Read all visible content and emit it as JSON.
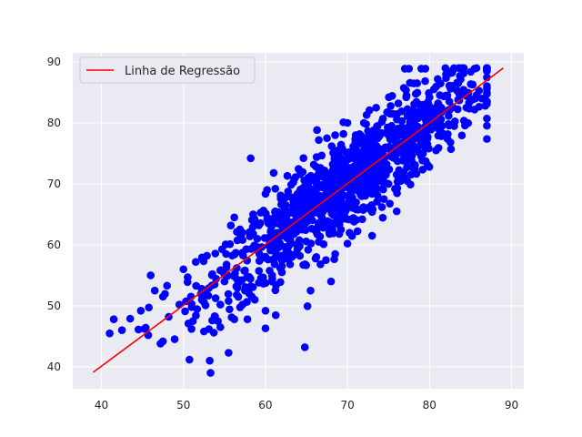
{
  "chart_data": {
    "type": "scatter",
    "xlim": [
      36.5,
      91.5
    ],
    "ylim": [
      36.4,
      91.5
    ],
    "xticks": [
      40,
      50,
      60,
      70,
      80,
      90
    ],
    "yticks": [
      40,
      50,
      60,
      70,
      80,
      90
    ],
    "grid": true,
    "legend": {
      "placement": "top-left",
      "entries": [
        "Linha de Regressão"
      ]
    },
    "colors": {
      "background": "#eaeaf2",
      "grid": "#ffffff",
      "points": "#0000ff",
      "line": "#ff0000"
    },
    "regression_line": {
      "x": [
        39,
        89
      ],
      "y": [
        39.1,
        89.0
      ]
    },
    "point_cloud": {
      "count": 1000,
      "x_mean": 70,
      "x_std": 8.5,
      "slope": 1.0,
      "intercept": 0.1,
      "residual_std": 3.8,
      "clip": [
        39,
        89
      ]
    },
    "points": [
      [
        41.5,
        47.8
      ],
      [
        42.5,
        46.0
      ],
      [
        43.5,
        47.9
      ],
      [
        44.8,
        49.2
      ],
      [
        45.7,
        45.2
      ],
      [
        46,
        55
      ],
      [
        46.5,
        52.5
      ],
      [
        47.2,
        43.8
      ],
      [
        47.5,
        51.5
      ],
      [
        48,
        53.3
      ],
      [
        48.2,
        48.2
      ],
      [
        49.5,
        50.2
      ],
      [
        50,
        56
      ],
      [
        50.2,
        49.1
      ],
      [
        50.5,
        53.9
      ],
      [
        50.6,
        47.1
      ],
      [
        51,
        49.8
      ],
      [
        51.5,
        57.2
      ],
      [
        52.2,
        52.8
      ],
      [
        52.5,
        45.8
      ],
      [
        53.2,
        41
      ],
      [
        53.3,
        39
      ],
      [
        53.5,
        47.6
      ],
      [
        53.7,
        45.6
      ],
      [
        54.2,
        47.5
      ],
      [
        54.5,
        46.5
      ],
      [
        55.5,
        42.3
      ],
      [
        56.2,
        47.8
      ],
      [
        57.2,
        50.2
      ],
      [
        57.8,
        47.8
      ],
      [
        58.2,
        74.2
      ],
      [
        58.5,
        65
      ],
      [
        59,
        61
      ],
      [
        60,
        49.2
      ],
      [
        60,
        46.3
      ],
      [
        60.2,
        69
      ],
      [
        60.8,
        54
      ],
      [
        61,
        71.8
      ],
      [
        61.2,
        69.2
      ],
      [
        62,
        55.5
      ],
      [
        64.8,
        43.2
      ],
      [
        65,
        70
      ],
      [
        65.5,
        52.5
      ],
      [
        66.2,
        58
      ],
      [
        68,
        54
      ],
      [
        68.5,
        58.5
      ],
      [
        69,
        61.8
      ],
      [
        70,
        60.2
      ],
      [
        72.2,
        69.8
      ],
      [
        73,
        61.5
      ],
      [
        74,
        75
      ],
      [
        75,
        70
      ],
      [
        76,
        65.5
      ],
      [
        77,
        88.9
      ],
      [
        77.5,
        88.9
      ],
      [
        79,
        88.9
      ],
      [
        79.5,
        88.9
      ],
      [
        80,
        84.2
      ],
      [
        81,
        87.2
      ],
      [
        82,
        84.5
      ],
      [
        83.5,
        86.5
      ],
      [
        85.5,
        82.2
      ],
      [
        85.5,
        88.9
      ],
      [
        86.8,
        82.8
      ],
      [
        70,
        80
      ],
      [
        71,
        78
      ],
      [
        72,
        80
      ],
      [
        73.5,
        82.5
      ],
      [
        68.5,
        78
      ],
      [
        69.5,
        80.1
      ],
      [
        66.5,
        77.2
      ],
      [
        67.5,
        77.5
      ],
      [
        63.5,
        70.8
      ],
      [
        64.5,
        66.5
      ],
      [
        62.5,
        67.8
      ],
      [
        61.5,
        64.2
      ],
      [
        58.5,
        61.8
      ],
      [
        57.2,
        62
      ],
      [
        56.2,
        64.5
      ],
      [
        55.2,
        58.5
      ],
      [
        54.5,
        55.8
      ],
      [
        53.8,
        53.5
      ],
      [
        52.8,
        51.8
      ],
      [
        55,
        54
      ],
      [
        56.5,
        56.2
      ],
      [
        57.5,
        55.8
      ],
      [
        59.5,
        57.8
      ],
      [
        60.5,
        60.2
      ],
      [
        62,
        62.2
      ],
      [
        63.2,
        63
      ],
      [
        64,
        62.5
      ],
      [
        65.5,
        64.5
      ],
      [
        66.8,
        66.2
      ],
      [
        67.5,
        67.8
      ],
      [
        68.8,
        68.5
      ],
      [
        69.8,
        70.2
      ],
      [
        70.5,
        71.5
      ],
      [
        71.5,
        72
      ],
      [
        72.5,
        72.8
      ],
      [
        73.5,
        73.2
      ],
      [
        74.5,
        74.5
      ],
      [
        75.5,
        75.8
      ],
      [
        76.5,
        76.2
      ],
      [
        77.5,
        77.5
      ],
      [
        78.5,
        78.2
      ],
      [
        79.5,
        79.5
      ],
      [
        80.5,
        80.2
      ],
      [
        81.5,
        81.8
      ],
      [
        82.5,
        82.2
      ],
      [
        83.5,
        83.8
      ],
      [
        84.5,
        82.5
      ],
      [
        79,
        74.5
      ],
      [
        80.8,
        75.5
      ],
      [
        78.2,
        72.5
      ],
      [
        76.8,
        70.8
      ],
      [
        75.8,
        69.2
      ],
      [
        74.2,
        66.2
      ],
      [
        72.8,
        65.8
      ],
      [
        71.8,
        64.2
      ],
      [
        70.8,
        63.8
      ],
      [
        69.2,
        62.5
      ],
      [
        67.8,
        61.8
      ],
      [
        66.5,
        60.5
      ],
      [
        65.2,
        59.2
      ],
      [
        64.2,
        58.2
      ],
      [
        63,
        56.8
      ],
      [
        61.8,
        56.2
      ],
      [
        60.8,
        55
      ],
      [
        59.2,
        53.8
      ],
      [
        58.2,
        53.2
      ],
      [
        57.5,
        52.5
      ],
      [
        56.5,
        51.8
      ],
      [
        55.5,
        50.8
      ],
      [
        54.5,
        50.2
      ],
      [
        78.5,
        86.5
      ],
      [
        77.2,
        84.5
      ],
      [
        76.2,
        83.2
      ],
      [
        75.2,
        81.5
      ],
      [
        74.2,
        80.2
      ],
      [
        73.2,
        78.8
      ],
      [
        72.2,
        77.5
      ],
      [
        71.2,
        76.5
      ],
      [
        70.2,
        75.2
      ],
      [
        69.2,
        74.2
      ],
      [
        68.2,
        73.2
      ],
      [
        67.2,
        72.2
      ],
      [
        66.2,
        71.2
      ],
      [
        65.2,
        69.8
      ],
      [
        64.2,
        68.8
      ],
      [
        63.2,
        67.8
      ],
      [
        62.2,
        66.5
      ],
      [
        61.2,
        65.5
      ],
      [
        60.2,
        64.2
      ],
      [
        59.2,
        63.2
      ],
      [
        58.2,
        62.2
      ],
      [
        57.2,
        60.8
      ]
    ]
  }
}
